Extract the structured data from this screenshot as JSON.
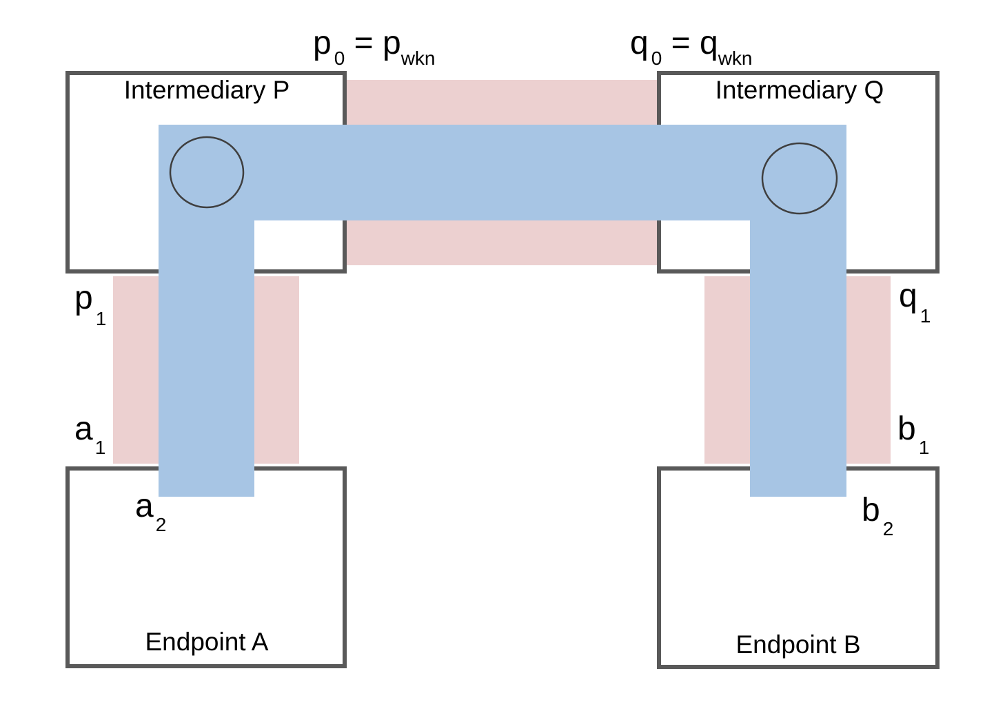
{
  "colors": {
    "red_band": "#ecd0d0",
    "blue_band": "#a7c5e4",
    "box_border": "#595959",
    "circle_border": "#3f3f3f"
  },
  "boxes": {
    "intermediary_p": "Intermediary P",
    "intermediary_q": "Intermediary Q",
    "endpoint_a": "Endpoint A",
    "endpoint_b": "Endpoint B"
  },
  "labels": {
    "p0": {
      "base": "p",
      "sub": "0",
      "eq": " = ",
      "base2": "p",
      "sub2": "wkn"
    },
    "q0": {
      "base": "q",
      "sub": "0",
      "eq": " = ",
      "base2": "q",
      "sub2": "wkn"
    },
    "p1": {
      "base": "p",
      "sub": "1"
    },
    "q1": {
      "base": "q",
      "sub": "1"
    },
    "a1": {
      "base": "a",
      "sub": "1"
    },
    "b1": {
      "base": "b",
      "sub": "1"
    },
    "a2": {
      "base": "a",
      "sub": "2"
    },
    "b2": {
      "base": "b",
      "sub": "2"
    }
  }
}
